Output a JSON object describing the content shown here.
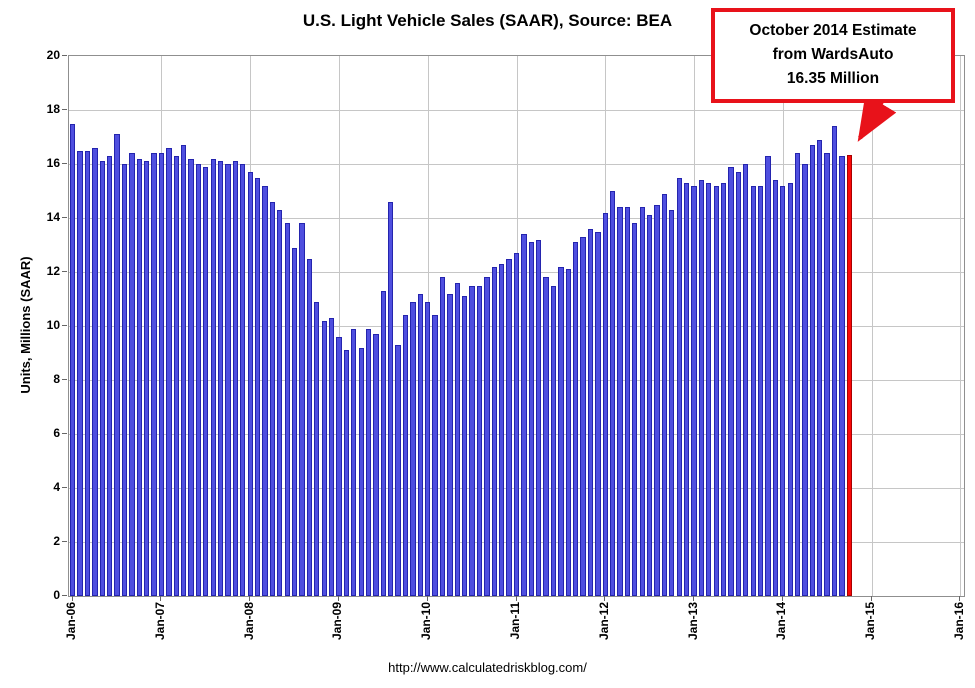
{
  "title": "U.S. Light Vehicle Sales (SAAR), Source: BEA",
  "footer": {
    "url_text": "http://www.calculatedriskblog.com/"
  },
  "annotation": {
    "line1": "October 2014 Estimate",
    "line2": "from WardsAuto",
    "line3": "16.35 Million"
  },
  "colors": {
    "bar_fill": "#4f4fdf",
    "bar_border": "#2424ae",
    "highlight_fill": "#fb0808",
    "highlight_border": "#a80000",
    "annotation_red": "#e8121a",
    "gridline": "#c6c6c6",
    "axis": "#8f8f8f"
  },
  "chart_data": {
    "type": "bar",
    "title": "U.S. Light Vehicle Sales (SAAR), Source: BEA",
    "ylabel": "Units, Millions (SAAR)",
    "xlabel": "",
    "ylim": [
      0,
      20
    ],
    "ytick_step": 2,
    "grid": true,
    "legend": false,
    "x_unit": "month",
    "x_start_label": "Jan-06",
    "x_domain_months": 121,
    "x_tick_labels": [
      "Jan-06",
      "Jan-07",
      "Jan-08",
      "Jan-09",
      "Jan-10",
      "Jan-11",
      "Jan-12",
      "Jan-13",
      "Jan-14",
      "Jan-15",
      "Jan-16"
    ],
    "series_name": "U.S. Light Vehicle Sales, SAAR (millions)",
    "values": [
      17.5,
      16.5,
      16.5,
      16.6,
      16.1,
      16.3,
      17.1,
      16.0,
      16.4,
      16.2,
      16.1,
      16.4,
      16.4,
      16.6,
      16.3,
      16.7,
      16.2,
      16.0,
      15.9,
      16.2,
      16.1,
      16.0,
      16.1,
      16.0,
      15.7,
      15.5,
      15.2,
      14.6,
      14.3,
      13.8,
      12.9,
      13.8,
      12.5,
      10.9,
      10.2,
      10.3,
      9.6,
      9.1,
      9.9,
      9.2,
      9.9,
      9.7,
      11.3,
      14.6,
      9.3,
      10.4,
      10.9,
      11.2,
      10.9,
      10.4,
      11.8,
      11.2,
      11.6,
      11.1,
      11.5,
      11.5,
      11.8,
      12.2,
      12.3,
      12.5,
      12.7,
      13.4,
      13.1,
      13.2,
      11.8,
      11.5,
      12.2,
      12.1,
      13.1,
      13.3,
      13.6,
      13.5,
      14.2,
      15.0,
      14.4,
      14.4,
      13.8,
      14.4,
      14.1,
      14.5,
      14.9,
      14.3,
      15.5,
      15.3,
      15.2,
      15.4,
      15.3,
      15.2,
      15.3,
      15.9,
      15.7,
      16.0,
      15.2,
      15.2,
      16.3,
      15.4,
      15.2,
      15.3,
      16.4,
      16.0,
      16.7,
      16.9,
      16.4,
      17.4,
      16.3,
      16.35
    ],
    "highlight": {
      "index": 105,
      "label": "October 2014 WardsAuto estimate",
      "value": 16.35
    }
  }
}
